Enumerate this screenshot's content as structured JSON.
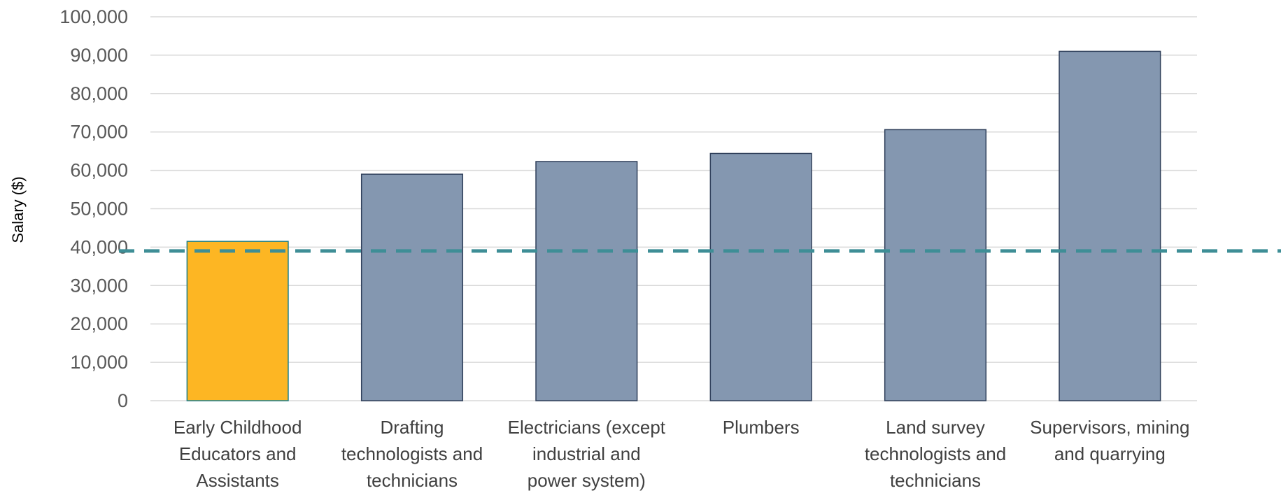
{
  "chart_data": {
    "type": "bar",
    "ylabel": "Salary ($)",
    "xlabel": "",
    "ylim": [
      0,
      100000
    ],
    "yticks": [
      0,
      10000,
      20000,
      30000,
      40000,
      50000,
      60000,
      70000,
      80000,
      90000,
      100000
    ],
    "ytick_labels": [
      "0",
      "10,000",
      "20,000",
      "30,000",
      "40,000",
      "50,000",
      "60,000",
      "70,000",
      "80,000",
      "90,000",
      "100,000"
    ],
    "grid": true,
    "categories": [
      [
        "Early Childhood",
        "Educators and",
        "Assistants"
      ],
      [
        "Drafting",
        "technologists and",
        "technicians"
      ],
      [
        "Electricians (except",
        "industrial and",
        "power system)"
      ],
      [
        "Plumbers"
      ],
      [
        "Land survey",
        "technologists and",
        "technicians"
      ],
      [
        "Supervisors, mining",
        "and quarrying"
      ]
    ],
    "values": [
      41500,
      59000,
      62300,
      64400,
      70600,
      91000
    ],
    "bar_colors": [
      "#FDB623",
      "#8497B0",
      "#8497B0",
      "#8497B0",
      "#8497B0",
      "#8497B0"
    ],
    "bar_edge_colors": [
      "#1F7F86",
      "#2F3F5A",
      "#2F3F5A",
      "#2F3F5A",
      "#2F3F5A",
      "#2F3F5A"
    ],
    "reference_line": {
      "value": 39000,
      "color": "#3E8E96",
      "style": "dashed"
    },
    "gridline_color": "#D9D9D9"
  }
}
